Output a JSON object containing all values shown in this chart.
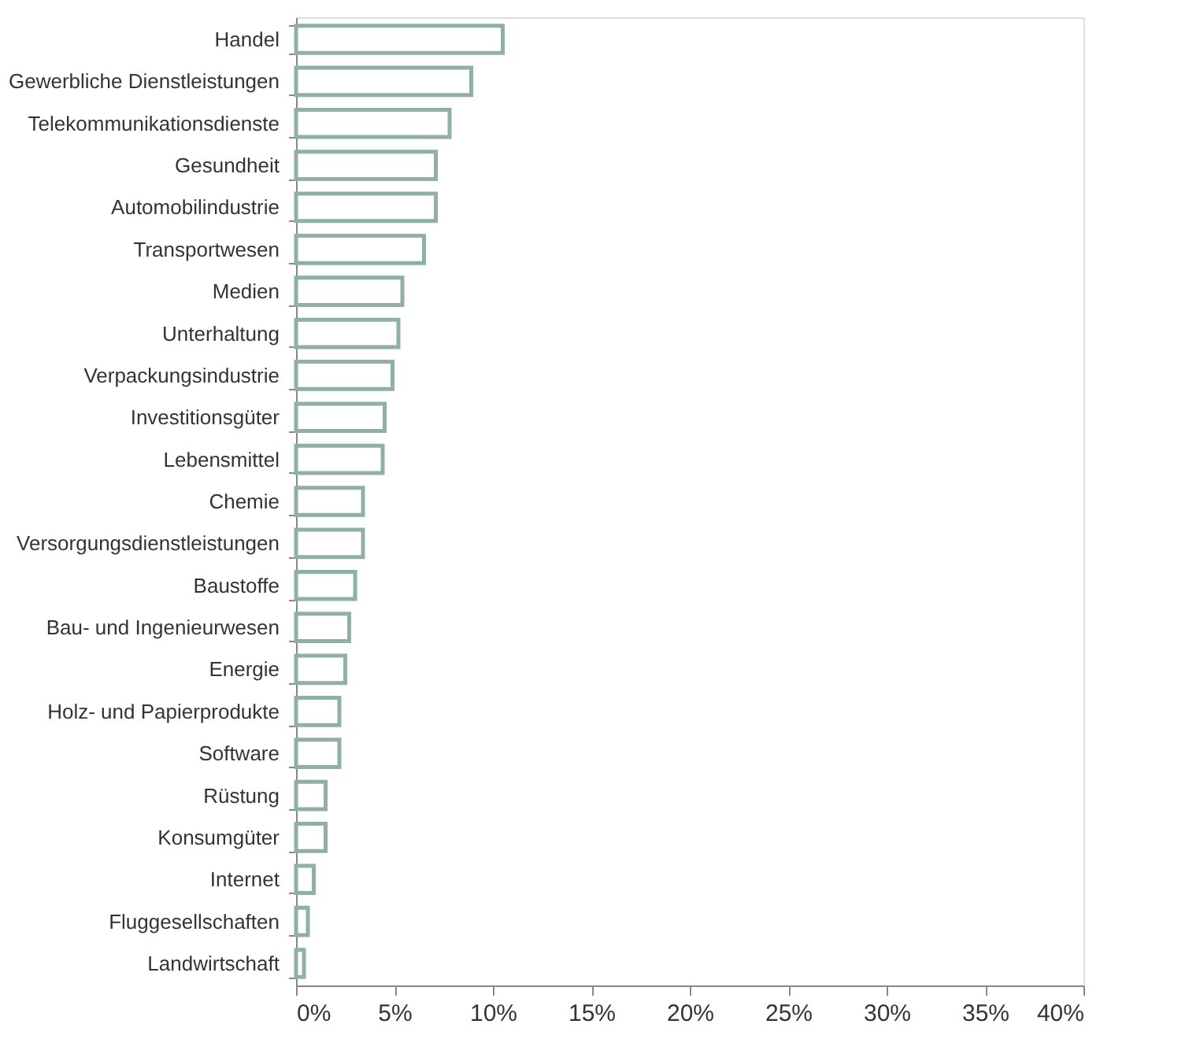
{
  "chart_data": {
    "type": "bar",
    "orientation": "horizontal",
    "categories": [
      "Handel",
      "Gewerbliche Dienstleistungen",
      "Telekommunikationsdienste",
      "Gesundheit",
      "Automobilindustrie",
      "Transportwesen",
      "Medien",
      "Unterhaltung",
      "Verpackungsindustrie",
      "Investitionsgüter",
      "Lebensmittel",
      "Chemie",
      "Versorgungsdienstleistungen",
      "Baustoffe",
      "Bau- und Ingenieurwesen",
      "Energie",
      "Holz- und Papierprodukte",
      "Software",
      "Rüstung",
      "Konsumgüter",
      "Internet",
      "Fluggesellschaften",
      "Landwirtschaft"
    ],
    "values": [
      10.5,
      8.9,
      7.8,
      7.1,
      7.1,
      6.5,
      5.4,
      5.2,
      4.9,
      4.5,
      4.4,
      3.4,
      3.4,
      3.0,
      2.7,
      2.5,
      2.2,
      2.2,
      1.5,
      1.5,
      0.9,
      0.6,
      0.4
    ],
    "color": "#8fb0a3",
    "xlim": [
      0,
      40
    ],
    "xticks": [
      {
        "value": 0,
        "label": "0%"
      },
      {
        "value": 5,
        "label": "5%"
      },
      {
        "value": 10,
        "label": "10%"
      },
      {
        "value": 15,
        "label": "15%"
      },
      {
        "value": 20,
        "label": "20%"
      },
      {
        "value": 25,
        "label": "25%"
      },
      {
        "value": 30,
        "label": "30%"
      },
      {
        "value": 35,
        "label": "35%"
      },
      {
        "value": 40,
        "label": "40%"
      }
    ],
    "grid": false
  }
}
